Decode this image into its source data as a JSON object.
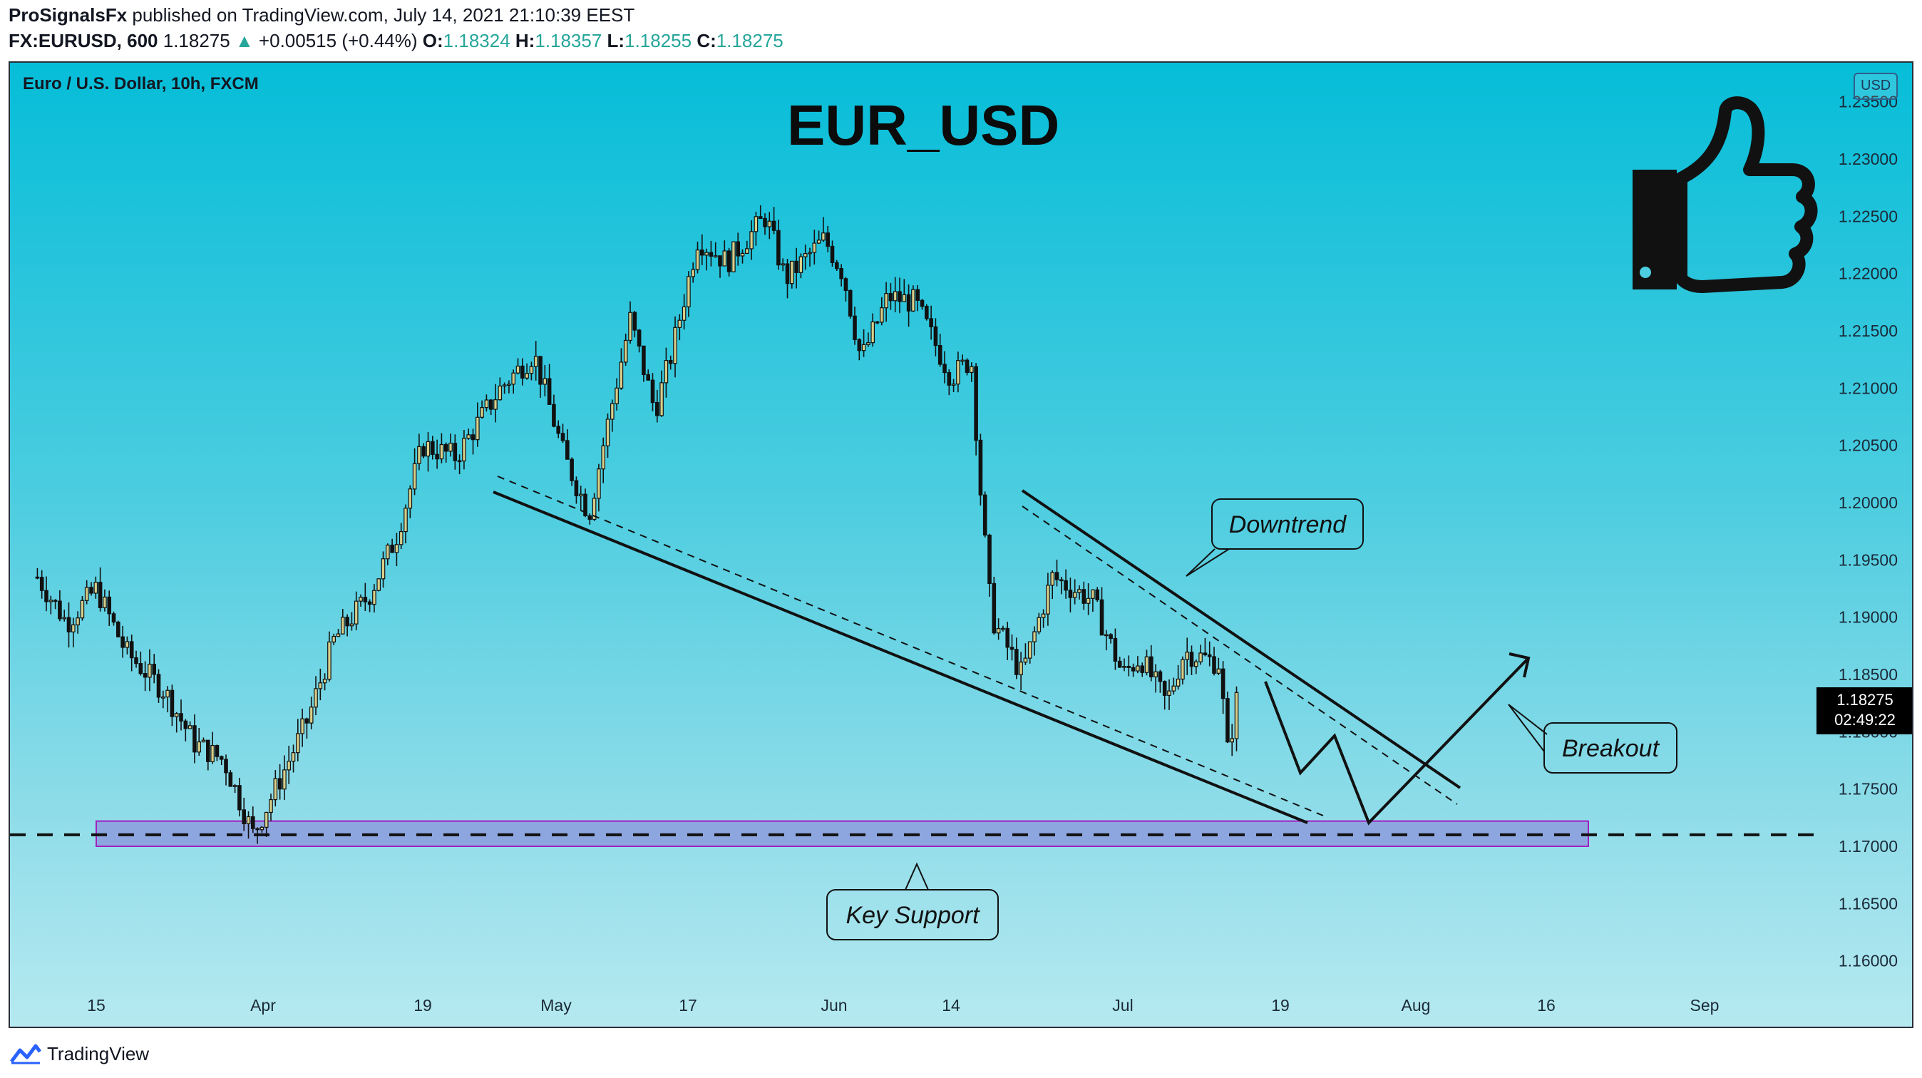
{
  "header": {
    "author": "ProSignalsFx",
    "published_text": "published on TradingView.com, July 14, 2021 21:10:39 EEST",
    "symbol": "FX:EURUSD, 600",
    "last": "1.18275",
    "change_arrow": "▲",
    "change": "+0.00515 (+0.44%)",
    "open_label": "O:",
    "open": "1.18324",
    "high_label": "H:",
    "high": "1.18357",
    "low_label": "L:",
    "low": "1.18255",
    "close_label": "C:",
    "close": "1.18275"
  },
  "chart": {
    "symbol_title": "Euro / U.S. Dollar, 10h, FXCM",
    "big_title": "EUR_USD",
    "currency": "USD",
    "last_price_tag": "1.18275",
    "countdown": "02:49:22",
    "annotations": {
      "downtrend": "Downtrend",
      "breakout": "Breakout",
      "key_support": "Key Support"
    },
    "icon": "thumbs-up-icon"
  },
  "footer": {
    "brand": "TradingView",
    "icon": "tradingview-logo-icon"
  },
  "colors": {
    "background_top": "#06bdd8",
    "background_bottom": "#b6e9f0",
    "support_zone": "#8d9cde",
    "support_zone_border": "#a020c0",
    "bull_candle": "#d8cf8a",
    "bear_candle": "#111111"
  },
  "chart_data": {
    "type": "candlestick",
    "title": "EUR_USD",
    "subtitle": "Euro / U.S. Dollar, 10h, FXCM",
    "ylim": [
      1.155,
      1.236
    ],
    "y_ticks": [
      "1.23500",
      "1.23000",
      "1.22500",
      "1.22000",
      "1.21500",
      "1.21000",
      "1.20500",
      "1.20000",
      "1.19500",
      "1.19000",
      "1.18500",
      "1.18000",
      "1.17500",
      "1.17000",
      "1.16500",
      "1.16000"
    ],
    "x_ticks": [
      "15",
      "Apr",
      "19",
      "May",
      "17",
      "Jun",
      "14",
      "Jul",
      "19",
      "Aug",
      "16",
      "Sep"
    ],
    "price_path": [
      {
        "date": "Mar 9",
        "price": 1.1935
      },
      {
        "date": "Mar 12",
        "price": 1.1895
      },
      {
        "date": "Mar 15",
        "price": 1.1925
      },
      {
        "date": "Mar 18",
        "price": 1.187
      },
      {
        "date": "Mar 22",
        "price": 1.1835
      },
      {
        "date": "Mar 25",
        "price": 1.179
      },
      {
        "date": "Mar 28",
        "price": 1.1775
      },
      {
        "date": "Mar 31",
        "price": 1.171
      },
      {
        "date": "Apr 3",
        "price": 1.176
      },
      {
        "date": "Apr 6",
        "price": 1.181
      },
      {
        "date": "Apr 9",
        "price": 1.188
      },
      {
        "date": "Apr 13",
        "price": 1.192
      },
      {
        "date": "Apr 16",
        "price": 1.197
      },
      {
        "date": "Apr 19",
        "price": 1.205
      },
      {
        "date": "Apr 22",
        "price": 1.204
      },
      {
        "date": "Apr 26",
        "price": 1.21
      },
      {
        "date": "Apr 29",
        "price": 1.213
      },
      {
        "date": "May 2",
        "price": 1.204
      },
      {
        "date": "May 5",
        "price": 1.199
      },
      {
        "date": "May 7",
        "price": 1.206
      },
      {
        "date": "May 10",
        "price": 1.216
      },
      {
        "date": "May 13",
        "price": 1.208
      },
      {
        "date": "May 15",
        "price": 1.213
      },
      {
        "date": "May 18",
        "price": 1.223
      },
      {
        "date": "May 21",
        "price": 1.221
      },
      {
        "date": "May 25",
        "price": 1.225
      },
      {
        "date": "May 27",
        "price": 1.2195
      },
      {
        "date": "May 31",
        "price": 1.223
      },
      {
        "date": "Jun 2",
        "price": 1.22
      },
      {
        "date": "Jun 4",
        "price": 1.2125
      },
      {
        "date": "Jun 7",
        "price": 1.218
      },
      {
        "date": "Jun 10",
        "price": 1.2175
      },
      {
        "date": "Jun 14",
        "price": 1.211
      },
      {
        "date": "Jun 16",
        "price": 1.2125
      },
      {
        "date": "Jun 17",
        "price": 1.2
      },
      {
        "date": "Jun 18",
        "price": 1.19
      },
      {
        "date": "Jun 21",
        "price": 1.185
      },
      {
        "date": "Jun 24",
        "price": 1.1935
      },
      {
        "date": "Jun 28",
        "price": 1.1915
      },
      {
        "date": "Jul 1",
        "price": 1.185
      },
      {
        "date": "Jul 3",
        "price": 1.1865
      },
      {
        "date": "Jul 6",
        "price": 1.1825
      },
      {
        "date": "Jul 8",
        "price": 1.187
      },
      {
        "date": "Jul 12",
        "price": 1.186
      },
      {
        "date": "Jul 13",
        "price": 1.178
      },
      {
        "date": "Jul 14",
        "price": 1.18275
      }
    ],
    "support_zone": [
      1.17,
      1.1722
    ],
    "support_level": 1.171,
    "projection": [
      {
        "date": "Jul 15",
        "price": 1.1835
      },
      {
        "date": "Jul 19",
        "price": 1.1765
      },
      {
        "date": "Jul 22",
        "price": 1.1795
      },
      {
        "date": "Jul 27",
        "price": 1.172
      },
      {
        "date": "Aug 10",
        "price": 1.1865
      }
    ],
    "grid": false,
    "legend": "none"
  }
}
